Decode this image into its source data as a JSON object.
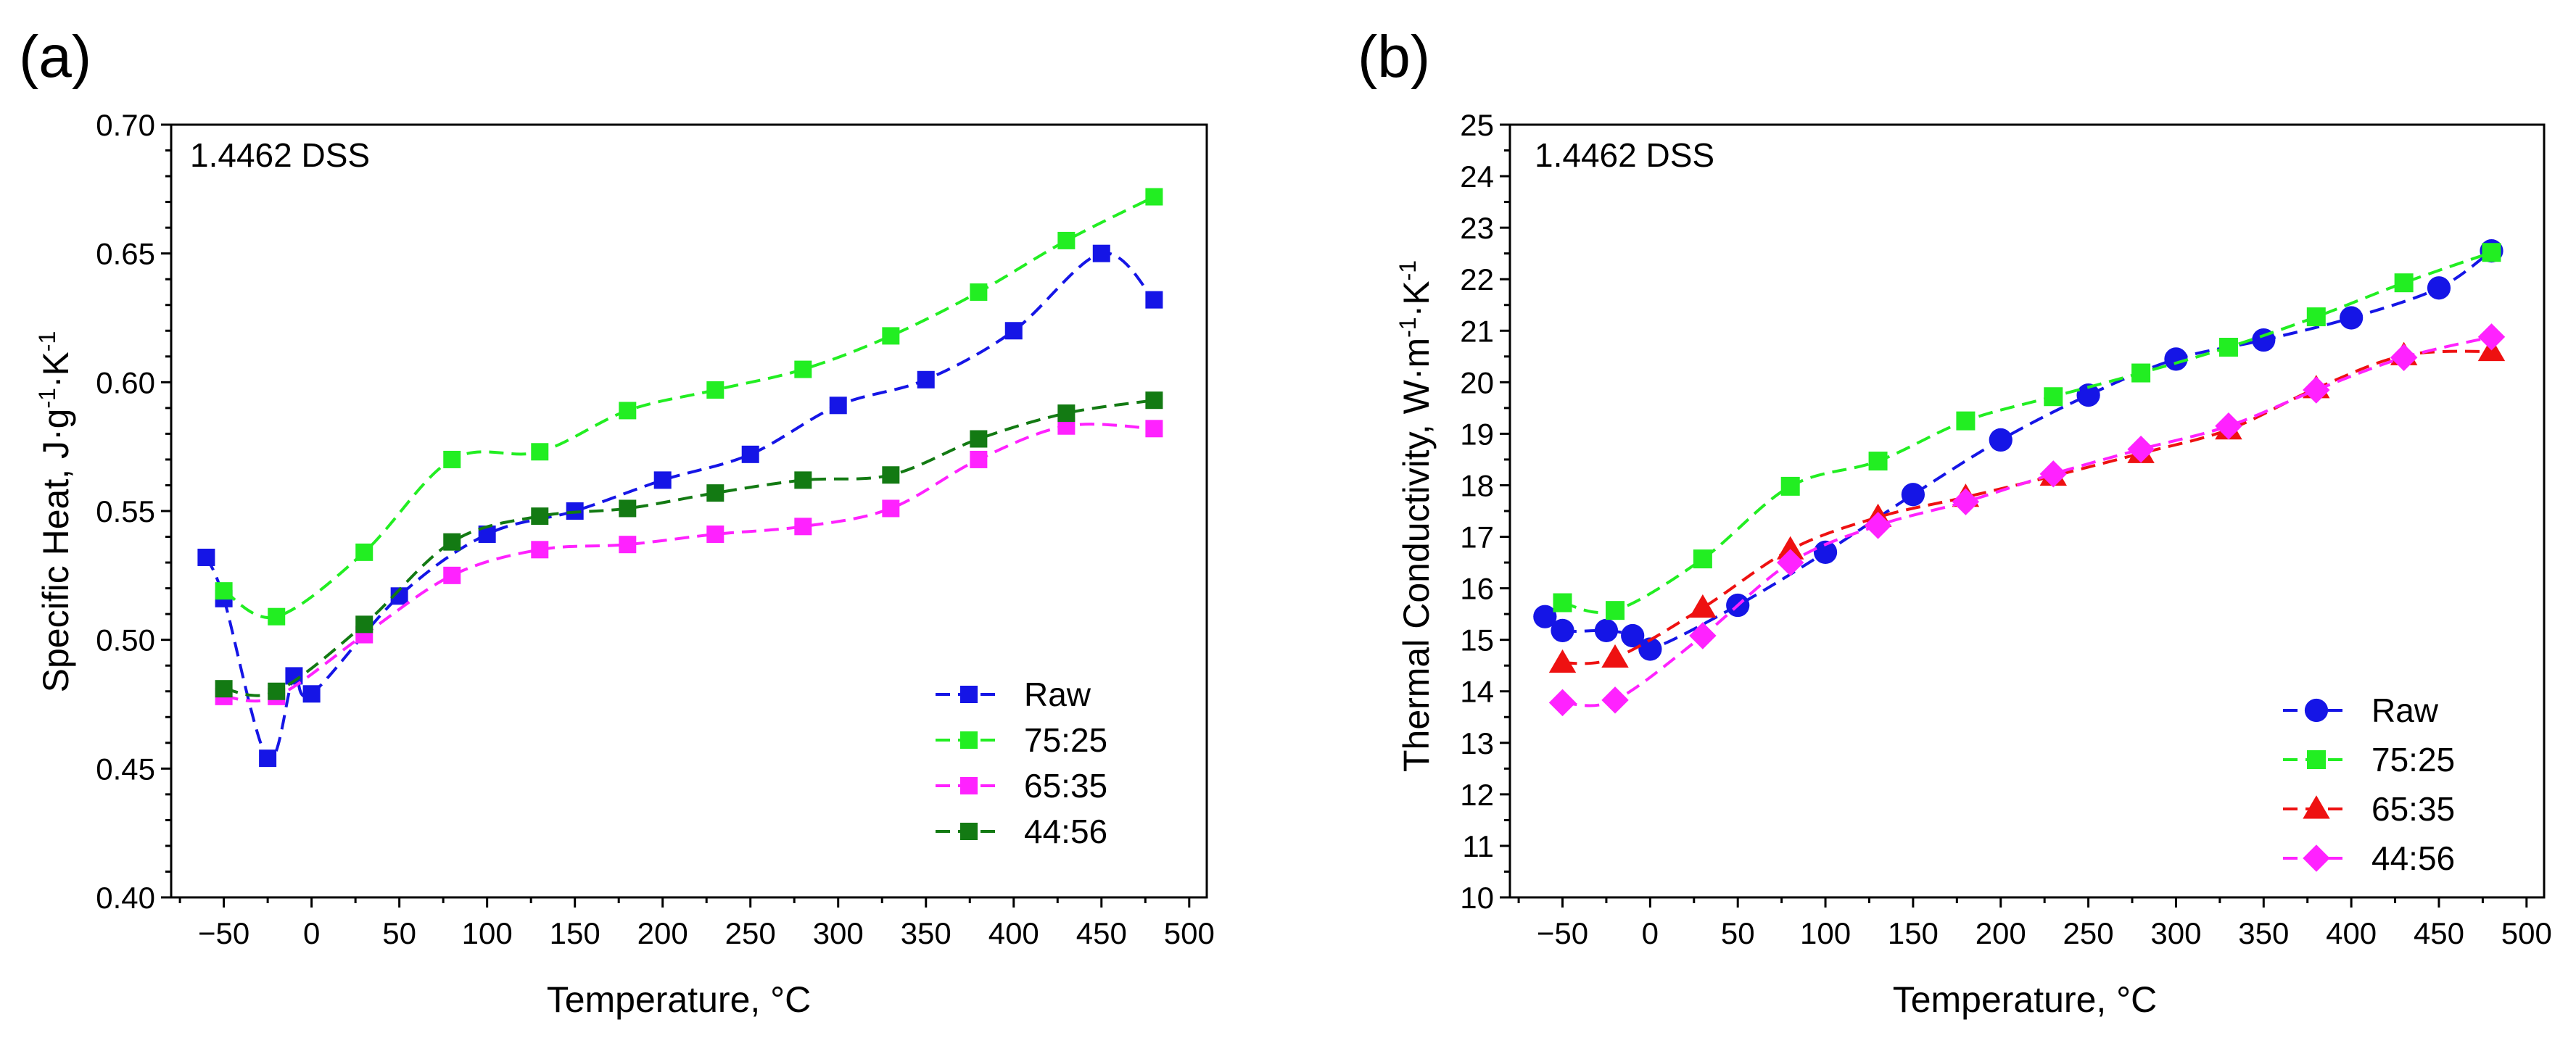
{
  "chart_data": [
    {
      "type": "line",
      "panel": "(a)",
      "annotation": "1.4462 DSS",
      "xlabel": "Temperature, °C",
      "ylabel": "Specific Heat, J·g⁻¹·K⁻¹",
      "xlim": [
        -80,
        510
      ],
      "ylim": [
        0.4,
        0.7
      ],
      "xticks": [
        -50,
        0,
        50,
        100,
        150,
        200,
        250,
        300,
        350,
        400,
        450,
        500
      ],
      "yticks": [
        0.4,
        0.45,
        0.5,
        0.55,
        0.6,
        0.65,
        0.7
      ],
      "ytick_decimals": 2,
      "legend_position": "bottom-right",
      "series": [
        {
          "name": "Raw",
          "color": "#1515e6",
          "marker": "square",
          "x": [
            -60,
            -50,
            -25,
            -10,
            0,
            50,
            100,
            150,
            200,
            250,
            300,
            350,
            400,
            450,
            480
          ],
          "y": [
            0.532,
            0.516,
            0.454,
            0.486,
            0.479,
            0.517,
            0.541,
            0.55,
            0.562,
            0.572,
            0.591,
            0.601,
            0.62,
            0.65,
            0.632
          ]
        },
        {
          "name": "75:25",
          "color": "#22ee22",
          "marker": "square",
          "x": [
            -50,
            -20,
            30,
            80,
            130,
            180,
            230,
            280,
            330,
            380,
            430,
            480
          ],
          "y": [
            0.519,
            0.509,
            0.534,
            0.57,
            0.573,
            0.589,
            0.597,
            0.605,
            0.618,
            0.635,
            0.655,
            0.672
          ]
        },
        {
          "name": "65:35",
          "color": "#ff22ff",
          "marker": "square",
          "x": [
            -50,
            -20,
            30,
            80,
            130,
            180,
            230,
            280,
            330,
            380,
            430,
            480
          ],
          "y": [
            0.478,
            0.478,
            0.502,
            0.525,
            0.535,
            0.537,
            0.541,
            0.544,
            0.551,
            0.57,
            0.583,
            0.582
          ]
        },
        {
          "name": "44:56",
          "color": "#137a13",
          "marker": "square",
          "x": [
            -50,
            -20,
            30,
            80,
            130,
            180,
            230,
            280,
            330,
            380,
            430,
            480
          ],
          "y": [
            0.481,
            0.48,
            0.506,
            0.538,
            0.548,
            0.551,
            0.557,
            0.562,
            0.564,
            0.578,
            0.588,
            0.593
          ]
        }
      ]
    },
    {
      "type": "line",
      "panel": "(b)",
      "annotation": "1.4462 DSS",
      "xlabel": "Temperature, °C",
      "ylabel": "Thermal Conductivity,  W·m⁻¹·K⁻¹",
      "xlim": [
        -80,
        510
      ],
      "ylim": [
        10,
        25
      ],
      "xticks": [
        -50,
        0,
        50,
        100,
        150,
        200,
        250,
        300,
        350,
        400,
        450,
        500
      ],
      "yticks": [
        10,
        11,
        12,
        13,
        14,
        15,
        16,
        17,
        18,
        19,
        20,
        21,
        22,
        23,
        24,
        25
      ],
      "ytick_decimals": 0,
      "legend_position": "bottom-right",
      "series": [
        {
          "name": "Raw",
          "color": "#1515e6",
          "marker": "circle",
          "x": [
            -60,
            -50,
            -25,
            -10,
            0,
            50,
            100,
            150,
            200,
            250,
            300,
            350,
            400,
            450,
            480
          ],
          "y": [
            15.45,
            15.18,
            15.18,
            15.08,
            14.82,
            15.67,
            16.7,
            17.82,
            18.88,
            19.75,
            20.45,
            20.82,
            21.25,
            21.83,
            22.55
          ]
        },
        {
          "name": "75:25",
          "color": "#22ee22",
          "marker": "square",
          "x": [
            -50,
            -20,
            30,
            80,
            130,
            180,
            230,
            280,
            330,
            380,
            430,
            480
          ],
          "y": [
            15.72,
            15.57,
            16.57,
            17.98,
            18.47,
            19.25,
            19.72,
            20.18,
            20.68,
            21.27,
            21.93,
            22.52
          ]
        },
        {
          "name": "65:35",
          "color": "#ee1111",
          "marker": "triangle",
          "x": [
            -50,
            -20,
            30,
            80,
            130,
            180,
            230,
            280,
            330,
            380,
            430,
            480
          ],
          "y": [
            14.55,
            14.65,
            15.62,
            16.75,
            17.38,
            17.77,
            18.18,
            18.62,
            19.08,
            19.88,
            20.52,
            20.6
          ]
        },
        {
          "name": "44:56",
          "color": "#ff22ff",
          "marker": "diamond",
          "x": [
            -50,
            -20,
            30,
            80,
            130,
            180,
            230,
            280,
            330,
            380,
            430,
            480
          ],
          "y": [
            13.78,
            13.83,
            15.08,
            16.5,
            17.22,
            17.68,
            18.22,
            18.7,
            19.15,
            19.85,
            20.48,
            20.88
          ]
        }
      ]
    }
  ]
}
